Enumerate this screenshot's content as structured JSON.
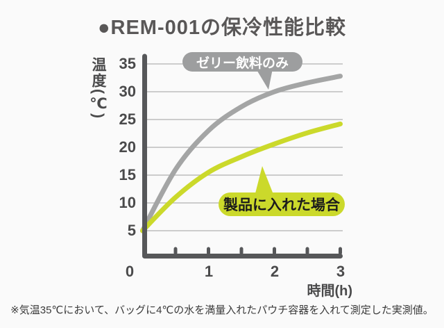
{
  "title": "●REM-001の保冷性能比較",
  "footnote": "※気温35℃において、バッグに4℃の水を満量入れたパウチ容器を入れて測定した実測値。",
  "chart_data": {
    "type": "line",
    "title": "REM-001の保冷性能比較",
    "xlabel": "時間(h)",
    "ylabel": "温度(℃)",
    "xlim": [
      0,
      3
    ],
    "ylim": [
      0,
      37
    ],
    "grid": "horizontal",
    "legend_position": "annotated-bubbles-on-lines",
    "x": [
      0,
      0.5,
      1,
      1.5,
      2,
      2.5,
      3
    ],
    "series": [
      {
        "name": "ゼリー飲料のみ",
        "color": "#a4a5a5",
        "values": [
          5,
          16,
          23,
          27.3,
          30,
          31.6,
          32.8
        ]
      },
      {
        "name": "製品に入れた場合",
        "color": "#cbd92b",
        "values": [
          5,
          11,
          15.5,
          18.3,
          20.6,
          22.6,
          24.2
        ]
      }
    ],
    "yticks": [
      5,
      10,
      15,
      20,
      25,
      30,
      35
    ],
    "xticks": [
      "0",
      "1",
      "2",
      "3"
    ],
    "xticks_minor": [
      0.5,
      1,
      1.5,
      2,
      2.5,
      3
    ]
  },
  "colors": {
    "bg": "#fafafa",
    "title_text": "#595757",
    "axis": "#565759",
    "grid": "#bdbdbd",
    "tick_text": "#4a4a4b",
    "note_text": "#3b3b3b",
    "bubble_gray": "#9d9e9f",
    "line_gray": "#a4a5a5",
    "accent_green": "#cbd92b",
    "bubble_green_text": "#1c1c1c"
  }
}
